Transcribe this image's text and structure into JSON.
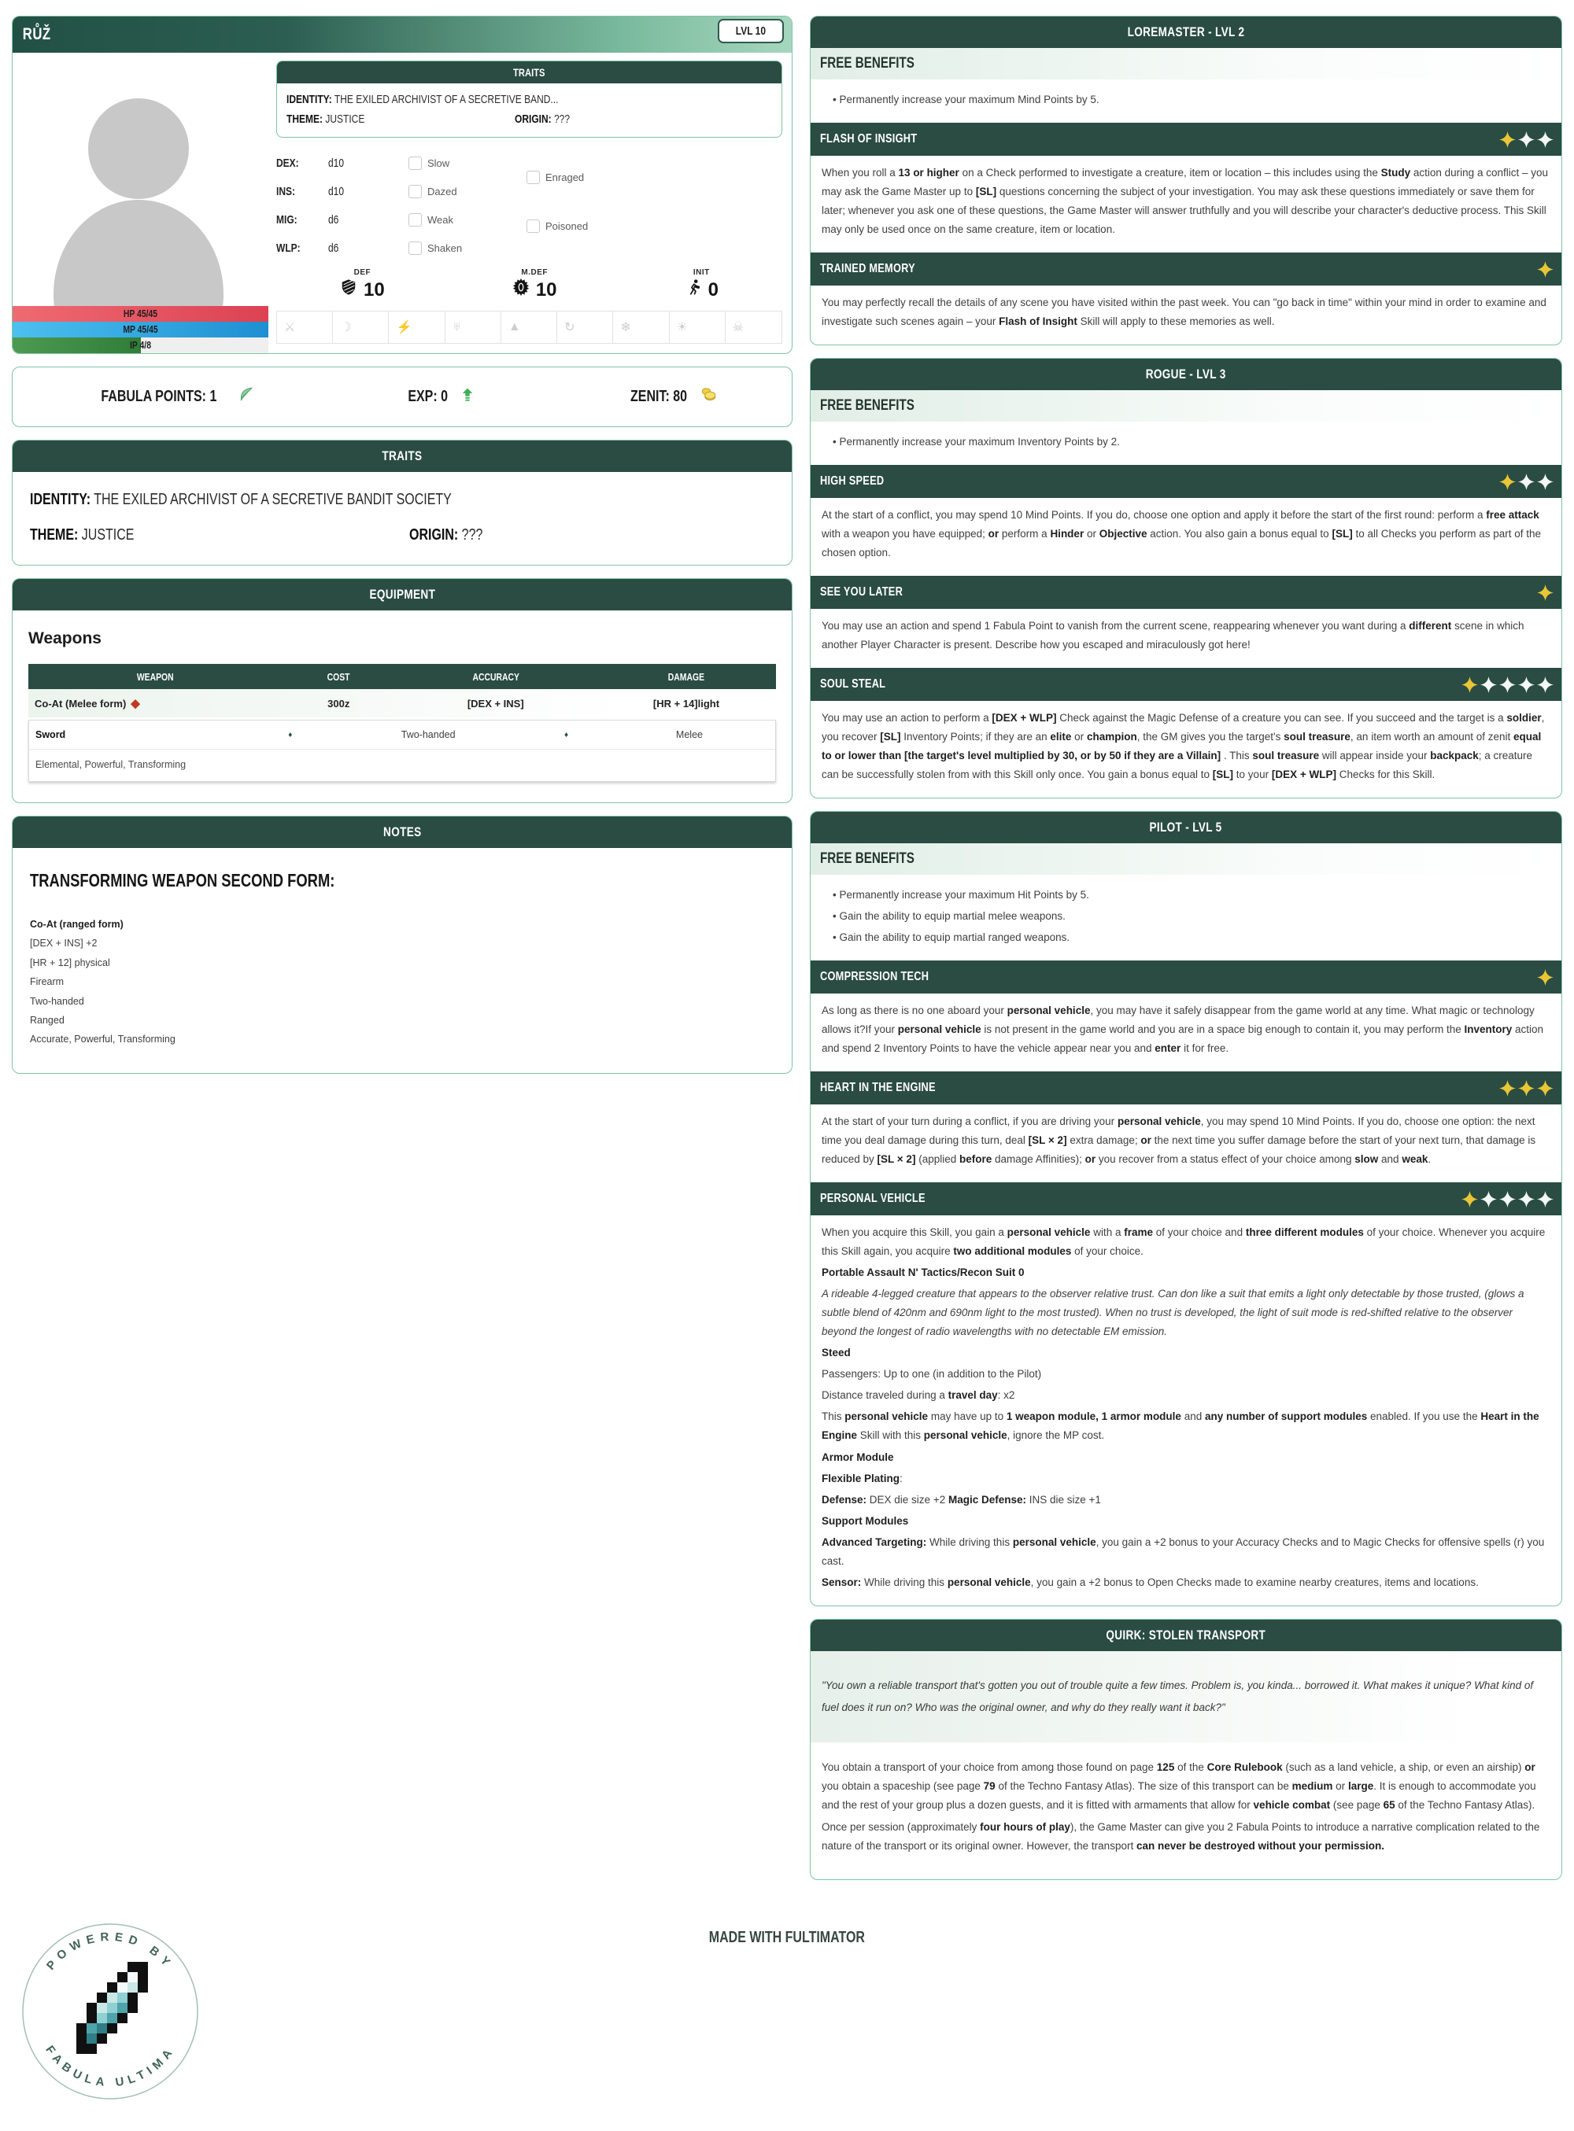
{
  "page": {
    "footer_text": "MADE WITH FULTIMATOR",
    "logo": {
      "arc_top": "POWERED BY",
      "arc_bottom": "FABULA ULTIMA",
      "feather_icon": "feather-pixel-icon"
    }
  },
  "character": {
    "name": "RŮŽ",
    "level_badge": "LVL 10",
    "mini_traits": {
      "title": "TRAITS",
      "identity_label": "IDENTITY:",
      "identity_value": "THE EXILED ARCHIVIST OF A SECRETIVE BAND...",
      "theme_label": "THEME:",
      "theme_value": "JUSTICE",
      "origin_label": "ORIGIN:",
      "origin_value": "???"
    },
    "attributes": [
      {
        "label": "DEX:",
        "value": "d10"
      },
      {
        "label": "INS:",
        "value": "d10"
      },
      {
        "label": "MIG:",
        "value": "d6"
      },
      {
        "label": "WLP:",
        "value": "d6"
      }
    ],
    "statuses_col1": [
      "Slow",
      "Dazed",
      "Weak",
      "Shaken"
    ],
    "statuses_col2": [
      "Enraged",
      "Poisoned"
    ],
    "defenses": [
      {
        "label": "DEF",
        "value": "10",
        "icon": "shield-icon"
      },
      {
        "label": "M.DEF",
        "value": "10",
        "icon": "magic-shield-icon"
      },
      {
        "label": "INIT",
        "value": "0",
        "icon": "initiative-icon"
      }
    ],
    "bars": [
      {
        "label": "HP 45/45",
        "percent": 100,
        "color_from": "#ef6a72",
        "color_to": "#dc4252"
      },
      {
        "label": "MP 45/45",
        "percent": 100,
        "color_from": "#4cc0ee",
        "color_to": "#1e8fd2"
      },
      {
        "label": "IP 4/8",
        "percent": 50,
        "color_from": "#4d9a52",
        "color_to": "#2f7d38"
      }
    ],
    "affinities": [
      {
        "name": "physical-icon",
        "glyph": "⚔"
      },
      {
        "name": "dark-icon",
        "glyph": "☽"
      },
      {
        "name": "bolt-icon",
        "glyph": "⚡"
      },
      {
        "name": "beast-icon",
        "glyph": "♅"
      },
      {
        "name": "earth-icon",
        "glyph": "▲"
      },
      {
        "name": "air-icon",
        "glyph": "↻"
      },
      {
        "name": "ice-icon",
        "glyph": "❄"
      },
      {
        "name": "light-icon",
        "glyph": "☀"
      },
      {
        "name": "poison-icon",
        "glyph": "☠"
      }
    ]
  },
  "points": {
    "items": [
      {
        "label": "FABULA POINTS: 1",
        "icon": "feather-icon"
      },
      {
        "label": "EXP: 0",
        "icon": "exp-arrow-icon"
      },
      {
        "label": "ZENIT: 80",
        "icon": "zenit-coins-icon"
      }
    ]
  },
  "traits_card": {
    "title": "TRAITS",
    "identity_label": "IDENTITY:",
    "identity_value": "THE EXILED ARCHIVIST OF A SECRETIVE BANDIT SOCIETY",
    "theme_label": "THEME:",
    "theme_value": "JUSTICE",
    "origin_label": "ORIGIN:",
    "origin_value": "???"
  },
  "equipment": {
    "title": "EQUIPMENT",
    "section_heading": "Weapons",
    "table_headers": [
      "WEAPON",
      "COST",
      "ACCURACY",
      "DAMAGE"
    ],
    "weapon_row": {
      "name": "Co-At (Melee form)",
      "marker": "◆",
      "cost": "300z",
      "accuracy": "【DEX + INS】",
      "damage": "【HR + 14】light"
    },
    "detail_row": [
      "Sword",
      "♦",
      "Two-handed",
      "♦",
      "Melee"
    ],
    "qualities": "Elemental, Powerful, Transforming"
  },
  "notes": {
    "title": "NOTES",
    "heading": "TRANSFORMING WEAPON SECOND FORM:",
    "lines": [
      "**Co-At (ranged form)**",
      "【DEX + INS】 +2",
      "【HR + 12】 physical",
      "Firearm",
      "Two-handed",
      "Ranged",
      "Accurate, Powerful, Transforming"
    ]
  },
  "classes": [
    {
      "title": "LOREMASTER - LVL 2",
      "benefits_label": "FREE BENEFITS",
      "benefits": [
        "Permanently increase your maximum Mind Points by 5."
      ],
      "skills": [
        {
          "name": "FLASH OF INSIGHT",
          "stars_gold": 1,
          "stars_white": 2,
          "paragraphs": [
            "When you roll a **13 or higher** on a Check performed to investigate a creature, item or location – this includes using the **Study** action during a conflict – you may ask the Game Master up to **【SL】** questions concerning the subject of your investigation. You may ask these questions immediately or save them for later; whenever you ask one of these questions, the Game Master will answer truthfully and you will describe your character's deductive process. This Skill may only be used once on the same creature, item or location."
          ]
        },
        {
          "name": "TRAINED MEMORY",
          "stars_gold": 1,
          "stars_white": 0,
          "paragraphs": [
            "You may perfectly recall the details of any scene you have visited within the past week. You can \"go back in time\" within your mind in order to examine and investigate such scenes again – your **Flash of Insight** Skill will apply to these memories as well."
          ]
        }
      ]
    },
    {
      "title": "ROGUE - LVL 3",
      "benefits_label": "FREE BENEFITS",
      "benefits": [
        "Permanently increase your maximum Inventory Points by 2."
      ],
      "skills": [
        {
          "name": "HIGH SPEED",
          "stars_gold": 1,
          "stars_white": 2,
          "paragraphs": [
            "At the start of a conflict, you may spend 10 Mind Points. If you do, choose one option and apply it before the start of the first round: perform a **free attack** with a weapon you have equipped; **or** perform a **Hinder** or **Objective** action. You also gain a bonus equal to **【SL】** to all Checks you perform as part of the chosen option."
          ]
        },
        {
          "name": "SEE YOU LATER",
          "stars_gold": 1,
          "stars_white": 0,
          "paragraphs": [
            "You may use an action and spend 1 Fabula Point to vanish from the current scene, reappearing whenever you want during a **different** scene in which another Player Character is present. Describe how you escaped and miraculously got here!"
          ]
        },
        {
          "name": "SOUL STEAL",
          "stars_gold": 1,
          "stars_white": 4,
          "paragraphs": [
            "You may use an action to perform a **【DEX + WLP】** Check against the Magic Defense of a creature you can see. If you succeed and the target is a **soldier**, you recover **【SL】** Inventory Points; if they are an **elite** or **champion**, the GM gives you the target's **soul treasure**, an item worth an amount of zenit **equal to or lower than 【the target's level multiplied by 30, or by 50 if they are a Villain】** . This **soul treasure** will appear inside your **backpack**; a creature can be successfully stolen from with this Skill only once. You gain a bonus equal to **【SL】** to your **【DEX + WLP】** Checks for this Skill."
          ]
        }
      ]
    },
    {
      "title": "PILOT - LVL 5",
      "benefits_label": "FREE BENEFITS",
      "benefits": [
        "Permanently increase your maximum Hit Points by 5.",
        "Gain the ability to equip martial melee weapons.",
        "Gain the ability to equip martial ranged weapons."
      ],
      "skills": [
        {
          "name": "COMPRESSION TECH",
          "stars_gold": 1,
          "stars_white": 0,
          "paragraphs": [
            "As long as there is no one aboard your **personal vehicle**, you may have it safely disappear from the game world at any time. What magic or technology allows it?If your **personal vehicle** is not present in the game world and you are in a space big enough to contain it, you may perform the **Inventory** action and spend 2 Inventory Points to have the vehicle appear near you and **enter** it for free."
          ]
        },
        {
          "name": "HEART IN THE ENGINE",
          "stars_gold": 3,
          "stars_white": 0,
          "paragraphs": [
            "At the start of your turn during a conflict, if you are driving your **personal vehicle**, you may spend 10 Mind Points. If you do, choose one option: the next time you deal damage during this turn, deal **【SL × 2】** extra damage; **or** the next time you suffer damage before the start of your next turn, that damage is reduced by **【SL × 2】** (applied **before** damage Affinities); **or** you recover from a status effect of your choice among **slow** and **weak**."
          ]
        },
        {
          "name": "PERSONAL VEHICLE",
          "stars_gold": 1,
          "stars_white": 4,
          "paragraphs": [
            "When you acquire this Skill, you gain a **personal vehicle** with a **frame** of your choice and **three different modules** of your choice. Whenever you acquire this Skill again, you acquire **two additional modules** of your choice.",
            "**Portable Assault N' Tactics/Recon Suit 0**",
            {
              "text": "A rideable 4-legged creature that appears to the observer relative trust. Can don like a suit that emits a light only detectable by those trusted, (glows a subtle blend of 420nm and 690nm light to the most trusted). When no trust is developed, the light of suit mode is red-shifted relative to the observer beyond the longest of radio wavelengths with no detectable EM emission.",
              "italic": true
            },
            "**Steed**",
            "Passengers: Up to one (in addition to the Pilot)",
            "Distance traveled during a **travel day**: x2",
            "This **personal vehicle** may have up to **1 weapon module, 1 armor module** and **any number of support modules** enabled. If you use the **Heart in the Engine** Skill with this **personal vehicle**, ignore the MP cost.",
            "**Armor Module**",
            "**Flexible Plating**:",
            "**Defense:** DEX die size +2 **Magic Defense:** INS die size +1",
            "**Support Modules**",
            "**Advanced Targeting:** While driving this **personal vehicle**, you gain a +2 bonus to your Accuracy Checks and to Magic Checks for offensive spells (r) you cast.",
            "**Sensor:** While driving this **personal vehicle**, you gain a +2 bonus to Open Checks made to examine nearby creatures, items and locations."
          ]
        }
      ]
    }
  ],
  "quirk": {
    "title": "QUIRK: STOLEN TRANSPORT",
    "quote": "\"You own a reliable transport that's gotten you out of trouble quite a few times. Problem is, you kinda... borrowed it. What makes it unique? What kind of fuel does it run on? Who was the original owner, and why do they really want it back?\"",
    "paragraphs": [
      "You obtain a transport of your choice from among those found on page **125** of the **Core Rulebook** (such as a land vehicle, a ship, or even an airship) **or** you obtain a spaceship (see page **79** of the Techno Fantasy Atlas). The size of this transport can be **medium** or **large**. It is enough to accommodate you and the rest of your group plus a dozen guests, and it is fitted with armaments that allow for **vehicle combat** (see page **65** of the Techno Fantasy Atlas).",
      "Once per session (approximately **four hours of play**), the Game Master can give you 2 Fabula Points to introduce a narrative complication related to the nature of the transport or its original owner. However, the transport **can never be destroyed without your permission.**"
    ]
  },
  "colors": {
    "header_green": "#2a4c42",
    "border_green": "#7fc4a6",
    "star_gold": "#e9c636",
    "star_white": "#f3f8f5",
    "hp_red": "#dc4252",
    "mp_blue": "#1e8fd2",
    "ip_green": "#3c8b45"
  }
}
